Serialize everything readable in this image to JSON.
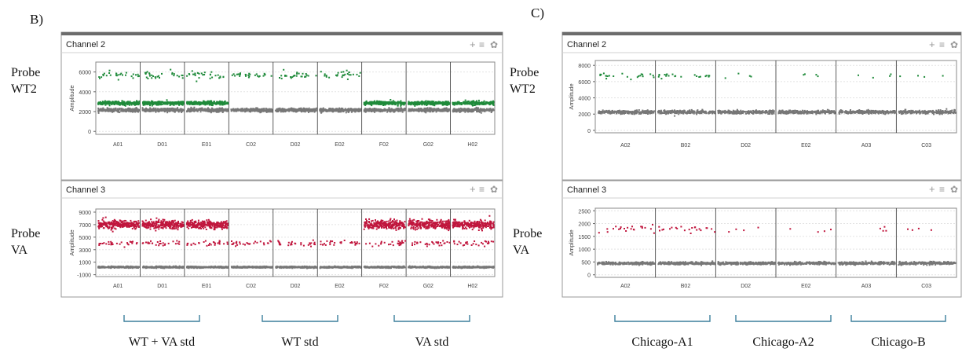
{
  "panels": [
    {
      "letter": "B)",
      "probe_labels": [
        {
          "line1": "Probe",
          "line2": "WT2"
        },
        {
          "line1": "Probe",
          "line2": "VA"
        }
      ],
      "brackets": [
        "WT + VA std",
        "WT std",
        "VA std"
      ]
    },
    {
      "letter": "C)",
      "probe_labels": [
        {
          "line1": "Probe",
          "line2": "WT2"
        },
        {
          "line1": "Probe",
          "line2": "VA"
        }
      ],
      "brackets": [
        "Chicago-A1",
        "Chicago-A2",
        "Chicago-B"
      ]
    }
  ],
  "toolbar_icons": [
    "plus-icon",
    "menu-icon",
    "gear-icon"
  ],
  "chart_data": [
    {
      "type": "scatter",
      "panel": "B",
      "title": "Channel 2",
      "ylabel": "Amplitude",
      "xlabel": "",
      "ylim": [
        -300,
        7000
      ],
      "yticks": [
        0,
        2000,
        4000,
        6000
      ],
      "categories": [
        "A01",
        "D01",
        "E01",
        "C02",
        "D02",
        "E02",
        "F02",
        "G02",
        "H02"
      ],
      "grid": true,
      "series": [
        {
          "color": "#1f8a3a",
          "clusters": [
            {
              "wells": [
                0,
                1,
                2,
                3,
                4,
                5
              ],
              "center": 5700,
              "spread": 380,
              "density": "sparse"
            },
            {
              "wells": [
                0,
                1,
                2,
                6,
                7,
                8
              ],
              "center": 2850,
              "spread": 180,
              "density": "dense"
            }
          ]
        },
        {
          "color": "#777777",
          "clusters": [
            {
              "wells": [
                0,
                1,
                2,
                3,
                4,
                5,
                6,
                7,
                8
              ],
              "center": 2150,
              "spread": 170,
              "density": "dense"
            }
          ]
        }
      ]
    },
    {
      "type": "scatter",
      "panel": "B",
      "title": "Channel 3",
      "ylabel": "Amplitude",
      "xlabel": "",
      "ylim": [
        -1300,
        9500
      ],
      "yticks": [
        -1000,
        1000,
        3000,
        5000,
        7000,
        9000
      ],
      "categories": [
        "A01",
        "D01",
        "E01",
        "C02",
        "D02",
        "E02",
        "F02",
        "G02",
        "H02"
      ],
      "grid": true,
      "series": [
        {
          "color": "#c0163d",
          "clusters": [
            {
              "wells": [
                0,
                1,
                2,
                6,
                7,
                8
              ],
              "center": 7000,
              "spread": 650,
              "density": "dense"
            },
            {
              "wells": [
                0,
                1,
                2,
                3,
                4,
                5,
                6,
                7,
                8
              ],
              "center": 4000,
              "spread": 420,
              "density": "sparse"
            }
          ]
        },
        {
          "color": "#777777",
          "clusters": [
            {
              "wells": [
                0,
                1,
                2,
                3,
                4,
                5,
                6,
                7,
                8
              ],
              "center": 200,
              "spread": 120,
              "density": "dense"
            }
          ]
        }
      ]
    },
    {
      "type": "scatter",
      "panel": "C",
      "title": "Channel 2",
      "ylabel": "Amplitude",
      "xlabel": "",
      "ylim": [
        -300,
        8600
      ],
      "yticks": [
        0,
        2000,
        4000,
        6000,
        8000
      ],
      "categories": [
        "A02",
        "B02",
        "D02",
        "E02",
        "A03",
        "C03"
      ],
      "grid": true,
      "series": [
        {
          "color": "#1f8a3a",
          "clusters": [
            {
              "wells": [
                0,
                1
              ],
              "center": 6700,
              "spread": 320,
              "density": "medium"
            },
            {
              "wells": [
                2,
                3,
                4,
                5
              ],
              "center": 6700,
              "spread": 320,
              "density": "few"
            }
          ]
        },
        {
          "color": "#777777",
          "clusters": [
            {
              "wells": [
                0,
                1,
                2,
                3,
                4,
                5
              ],
              "center": 2250,
              "spread": 200,
              "density": "dense"
            }
          ]
        }
      ]
    },
    {
      "type": "scatter",
      "panel": "C",
      "title": "Channel 3",
      "ylabel": "Amplitude",
      "xlabel": "",
      "ylim": [
        -100,
        2600
      ],
      "yticks": [
        0,
        500,
        1000,
        1500,
        2000,
        2500
      ],
      "categories": [
        "A02",
        "B02",
        "D02",
        "E02",
        "A03",
        "C03"
      ],
      "grid": true,
      "series": [
        {
          "color": "#c0163d",
          "clusters": [
            {
              "wells": [
                0,
                1
              ],
              "center": 1800,
              "spread": 140,
              "density": "medium"
            },
            {
              "wells": [
                2,
                3,
                4,
                5
              ],
              "center": 1750,
              "spread": 140,
              "density": "few"
            }
          ]
        },
        {
          "color": "#777777",
          "clusters": [
            {
              "wells": [
                0,
                1,
                2,
                3,
                4,
                5
              ],
              "center": 450,
              "spread": 50,
              "density": "dense"
            }
          ]
        }
      ]
    }
  ]
}
